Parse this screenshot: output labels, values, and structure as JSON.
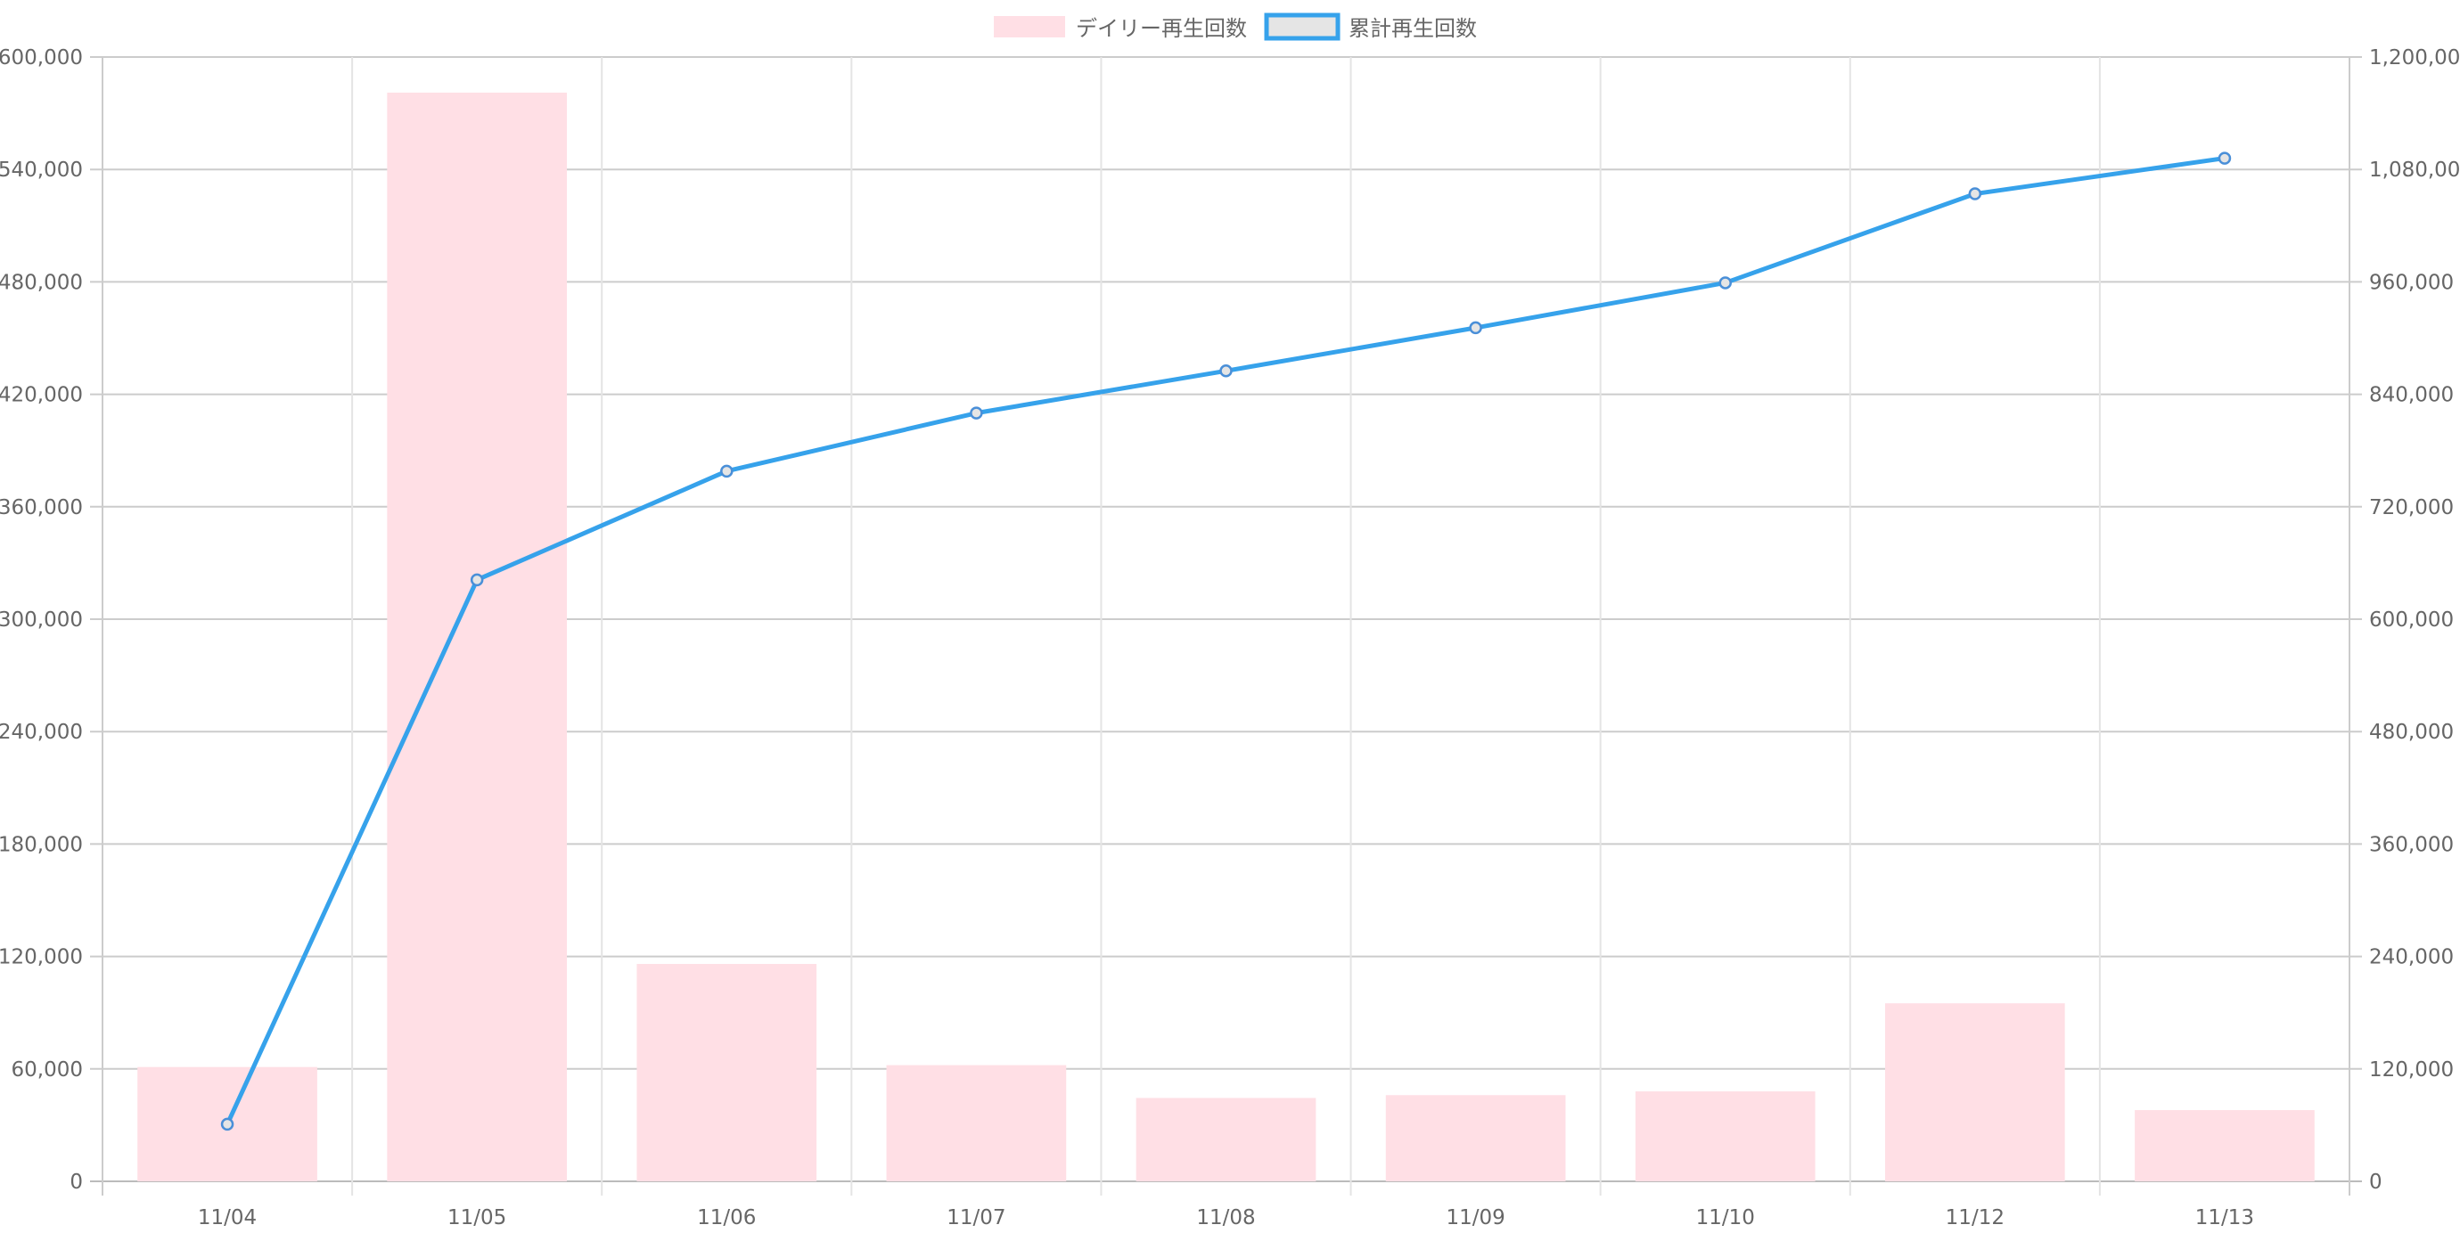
{
  "chart_data": {
    "type": "bar+line",
    "categories": [
      "11/04",
      "11/05",
      "11/06",
      "11/07",
      "11/08",
      "11/09",
      "11/10",
      "11/12",
      "11/13"
    ],
    "series": [
      {
        "name": "デイリー再生回数",
        "type": "bar",
        "axis": "left",
        "color": "#ffdfe5",
        "values": [
          61000,
          581000,
          116000,
          62000,
          44500,
          46000,
          48000,
          95000,
          38000
        ]
      },
      {
        "name": "累計再生回数",
        "type": "line",
        "axis": "right",
        "color": "#36a2eb",
        "values": [
          61000,
          642000,
          758000,
          820000,
          865000,
          911000,
          959000,
          1054000,
          1092000
        ]
      }
    ],
    "y_left": {
      "min": 0,
      "max": 600000,
      "ticks": [
        "0",
        "60,000",
        "120,000",
        "180,000",
        "240,000",
        "300,000",
        "360,000",
        "420,000",
        "480,000",
        "540,000",
        "600,000"
      ]
    },
    "y_right": {
      "min": 0,
      "max": 1200000,
      "ticks": [
        "0",
        "120,000",
        "240,000",
        "360,000",
        "480,000",
        "600,000",
        "720,000",
        "840,000",
        "960,000",
        "1,080,000",
        "1,200,000"
      ]
    },
    "grid": true,
    "legend": "top"
  }
}
